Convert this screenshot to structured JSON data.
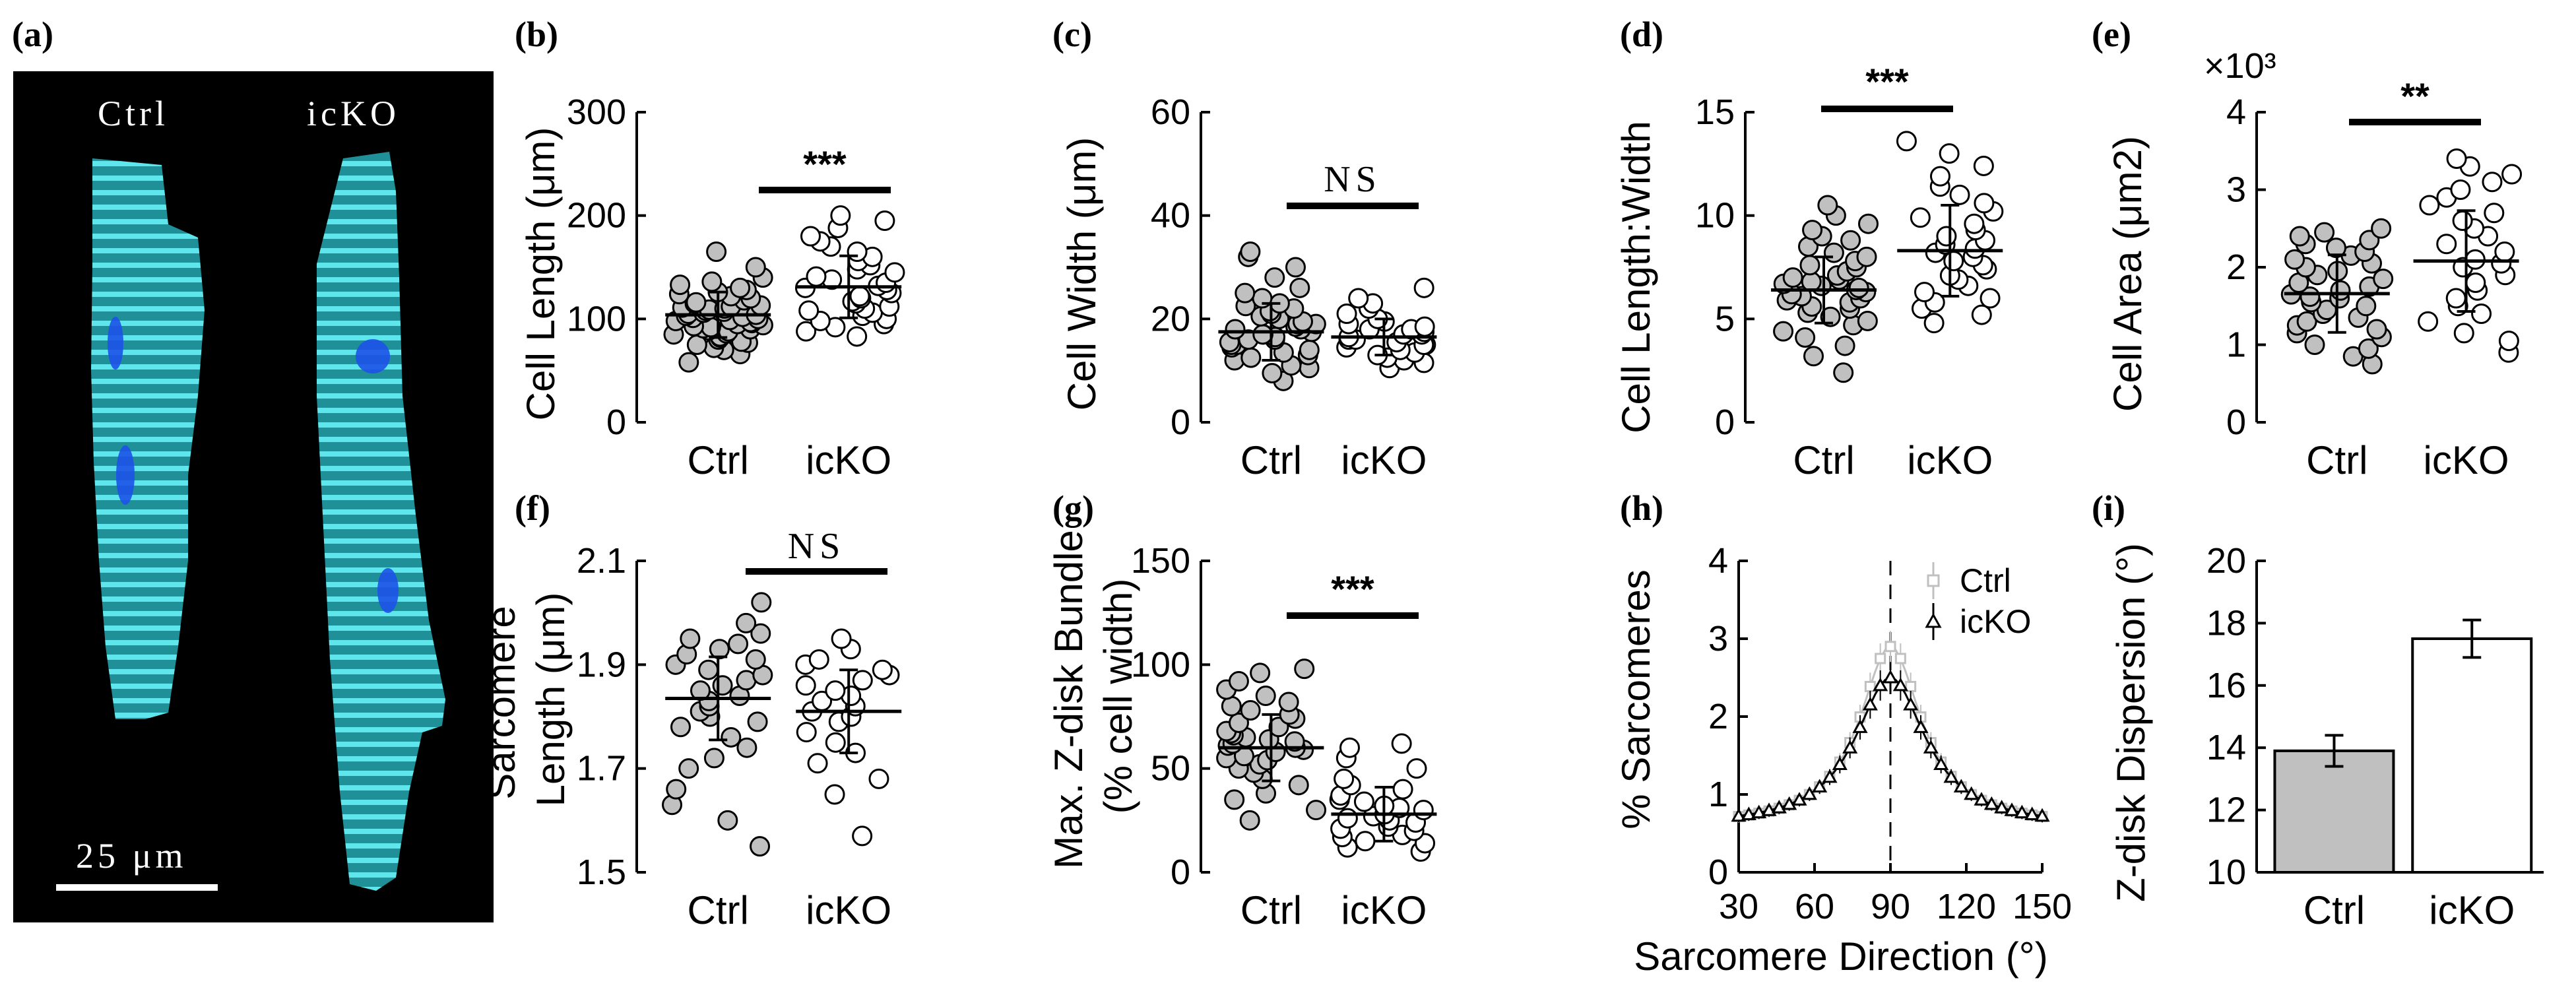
{
  "colors": {
    "ctrl_fill": "#c0c0c0",
    "icko_fill": "#ffffff",
    "stroke": "#000000",
    "cell_cyan": "#36d4dc",
    "nucleus": "#1d52e8",
    "h_ctrl": "#c0c0c0",
    "h_icko": "#000000"
  },
  "panel_a": {
    "label": "(a)",
    "ctrl_label": "Ctrl",
    "icko_label": "icKO",
    "scalebar_label": "25 μm"
  },
  "chart_data": [
    {
      "id": "b",
      "label": "(b)",
      "type": "scatter",
      "ylabel": "Cell Length (μm)",
      "yticks": [
        0,
        100,
        200,
        300
      ],
      "ylim": [
        0,
        300
      ],
      "categories": [
        "Ctrl",
        "icKO"
      ],
      "significance": "***",
      "groups": [
        {
          "name": "Ctrl",
          "mean": 104,
          "sd": 22,
          "values": [
            58,
            66,
            70,
            72,
            75,
            77,
            78,
            80,
            82,
            83,
            85,
            86,
            88,
            89,
            90,
            91,
            92,
            93,
            94,
            95,
            96,
            97,
            98,
            99,
            100,
            101,
            102,
            103,
            104,
            105,
            106,
            107,
            108,
            109,
            110,
            111,
            112,
            113,
            115,
            116,
            118,
            120,
            122,
            124,
            126,
            128,
            130,
            133,
            136,
            140,
            150,
            165
          ]
        },
        {
          "name": "icKO",
          "mean": 131,
          "sd": 30,
          "values": [
            83,
            88,
            92,
            95,
            98,
            100,
            103,
            106,
            108,
            110,
            112,
            115,
            117,
            120,
            122,
            125,
            128,
            130,
            132,
            135,
            138,
            141,
            145,
            148,
            152,
            156,
            160,
            165,
            170,
            175,
            180,
            188,
            195,
            200
          ]
        }
      ]
    },
    {
      "id": "c",
      "label": "(c)",
      "type": "scatter",
      "ylabel": "Cell Width (μm)",
      "yticks": [
        0,
        20,
        40,
        60
      ],
      "ylim": [
        0,
        60
      ],
      "categories": [
        "Ctrl",
        "icKO"
      ],
      "significance": "NS",
      "groups": [
        {
          "name": "Ctrl",
          "mean": 17.5,
          "sd": 5.5,
          "values": [
            8,
            9.5,
            10.5,
            11,
            12,
            12.5,
            13,
            13.5,
            14,
            14.5,
            15,
            15,
            15.5,
            16,
            16,
            16.5,
            17,
            17,
            17.5,
            18,
            18,
            18.5,
            19,
            19,
            19.5,
            20,
            20.5,
            21,
            21.5,
            22,
            22.5,
            23,
            24,
            25,
            26,
            28,
            30,
            32,
            33
          ]
        },
        {
          "name": "icKO",
          "mean": 16.5,
          "sd": 3.5,
          "values": [
            10.5,
            11.5,
            12,
            12.5,
            13,
            13.5,
            14,
            14.5,
            15,
            15,
            15.5,
            16,
            16,
            16.5,
            17,
            17,
            17.5,
            18,
            18,
            18.5,
            19,
            19.5,
            20,
            21,
            22,
            23,
            24,
            26
          ]
        }
      ]
    },
    {
      "id": "d",
      "label": "(d)",
      "type": "scatter",
      "ylabel": "Cell Length:Width",
      "yticks": [
        0,
        5,
        10,
        15
      ],
      "ylim": [
        0,
        15
      ],
      "categories": [
        "Ctrl",
        "icKO"
      ],
      "significance": "***",
      "groups": [
        {
          "name": "Ctrl",
          "mean": 6.4,
          "sd": 1.6,
          "values": [
            2.4,
            3.2,
            3.7,
            4.1,
            4.4,
            4.7,
            4.9,
            5.1,
            5.3,
            5.5,
            5.6,
            5.8,
            5.9,
            6.0,
            6.1,
            6.2,
            6.3,
            6.4,
            6.5,
            6.6,
            6.7,
            6.8,
            6.9,
            7.0,
            7.1,
            7.3,
            7.5,
            7.6,
            7.8,
            8.0,
            8.2,
            8.5,
            8.8,
            9.0,
            9.3,
            9.6,
            10.0,
            10.5
          ]
        },
        {
          "name": "icKO",
          "mean": 8.3,
          "sd": 2.2,
          "values": [
            4.8,
            5.2,
            5.5,
            5.8,
            6.0,
            6.3,
            6.6,
            6.9,
            7.1,
            7.4,
            7.6,
            7.8,
            8.0,
            8.2,
            8.4,
            8.6,
            8.8,
            9.0,
            9.3,
            9.6,
            9.9,
            10.2,
            10.6,
            11.0,
            11.4,
            11.9,
            12.4,
            13.0,
            13.6
          ]
        }
      ]
    },
    {
      "id": "e",
      "label": "(e)",
      "type": "scatter",
      "ylabel": "Cell Area (μm2)",
      "multiplier": "×10³",
      "yticks": [
        0,
        1,
        2,
        3,
        4
      ],
      "ylim": [
        0,
        4
      ],
      "categories": [
        "Ctrl",
        "icKO"
      ],
      "significance": "**",
      "groups": [
        {
          "name": "Ctrl",
          "mean": 1.66,
          "sd": 0.5,
          "values": [
            0.75,
            0.85,
            0.95,
            1.0,
            1.1,
            1.15,
            1.2,
            1.25,
            1.3,
            1.35,
            1.4,
            1.45,
            1.5,
            1.55,
            1.6,
            1.62,
            1.65,
            1.7,
            1.75,
            1.8,
            1.85,
            1.9,
            1.95,
            2.0,
            2.05,
            2.1,
            2.15,
            2.2,
            2.25,
            2.3,
            2.35,
            2.4,
            2.45,
            2.5
          ]
        },
        {
          "name": "icKO",
          "mean": 2.08,
          "sd": 0.65,
          "values": [
            0.9,
            1.05,
            1.15,
            1.3,
            1.4,
            1.5,
            1.6,
            1.7,
            1.8,
            1.9,
            2.0,
            2.05,
            2.1,
            2.2,
            2.3,
            2.4,
            2.5,
            2.6,
            2.7,
            2.8,
            2.9,
            3.0,
            3.1,
            3.2,
            3.3,
            3.4
          ]
        }
      ]
    },
    {
      "id": "f",
      "label": "(f)",
      "type": "scatter",
      "ylabel_line1": "Sarcomere",
      "ylabel_line2": "Length (μm)",
      "yticks": [
        1.5,
        1.7,
        1.9,
        2.1
      ],
      "ylim": [
        1.5,
        2.1
      ],
      "categories": [
        "Ctrl",
        "icKO"
      ],
      "significance": "NS",
      "groups": [
        {
          "name": "Ctrl",
          "mean": 1.835,
          "sd": 0.08,
          "values": [
            1.55,
            1.6,
            1.63,
            1.66,
            1.7,
            1.72,
            1.74,
            1.76,
            1.78,
            1.79,
            1.8,
            1.81,
            1.82,
            1.83,
            1.84,
            1.85,
            1.86,
            1.87,
            1.88,
            1.89,
            1.9,
            1.91,
            1.92,
            1.93,
            1.94,
            1.95,
            1.96,
            1.98,
            2.02
          ]
        },
        {
          "name": "icKO",
          "mean": 1.81,
          "sd": 0.08,
          "values": [
            1.57,
            1.65,
            1.68,
            1.71,
            1.73,
            1.75,
            1.77,
            1.79,
            1.8,
            1.81,
            1.82,
            1.83,
            1.84,
            1.85,
            1.86,
            1.87,
            1.88,
            1.89,
            1.9,
            1.91,
            1.93,
            1.95
          ]
        }
      ]
    },
    {
      "id": "g",
      "label": "(g)",
      "type": "scatter",
      "ylabel_line1": "Max. Z-disk Bundle",
      "ylabel_line2": "(% cell width)",
      "yticks": [
        0,
        50,
        100,
        150
      ],
      "ylim": [
        0,
        150
      ],
      "categories": [
        "Ctrl",
        "icKO"
      ],
      "significance": "***",
      "groups": [
        {
          "name": "Ctrl",
          "mean": 60,
          "sd": 16,
          "values": [
            25,
            30,
            35,
            38,
            42,
            45,
            48,
            50,
            52,
            54,
            55,
            56,
            58,
            59,
            60,
            61,
            62,
            63,
            64,
            65,
            66,
            67,
            68,
            70,
            72,
            74,
            76,
            78,
            80,
            82,
            85,
            88,
            92,
            96,
            98
          ]
        },
        {
          "name": "icKO",
          "mean": 28,
          "sd": 13,
          "values": [
            10,
            12,
            14,
            15,
            17,
            18,
            20,
            21,
            22,
            24,
            25,
            26,
            27,
            28,
            30,
            31,
            32,
            34,
            35,
            37,
            40,
            42,
            45,
            50,
            55,
            60,
            62
          ]
        }
      ]
    },
    {
      "id": "h",
      "label": "(h)",
      "type": "line",
      "xlabel": "Sarcomere Direction (°)",
      "ylabel": "% Sarcomeres",
      "xticks": [
        30,
        60,
        90,
        120,
        150
      ],
      "xlim": [
        30,
        150
      ],
      "yticks": [
        0,
        1,
        2,
        3,
        4
      ],
      "ylim": [
        0,
        4
      ],
      "vline": 90,
      "series": [
        {
          "name": "Ctrl",
          "marker": "square",
          "peak": 2.9,
          "base": 0.58,
          "width": 15
        },
        {
          "name": "icKO",
          "marker": "triangle",
          "peak": 2.5,
          "base": 0.58,
          "width": 17
        }
      ]
    },
    {
      "id": "i",
      "label": "(i)",
      "type": "bar",
      "ylabel": "Z-disk Dispersion (°)",
      "yticks": [
        10,
        12,
        14,
        16,
        18,
        20
      ],
      "ylim": [
        10,
        20
      ],
      "categories": [
        "Ctrl",
        "icKO"
      ],
      "values": [
        13.9,
        17.5
      ],
      "errors": [
        0.5,
        0.6
      ]
    }
  ]
}
